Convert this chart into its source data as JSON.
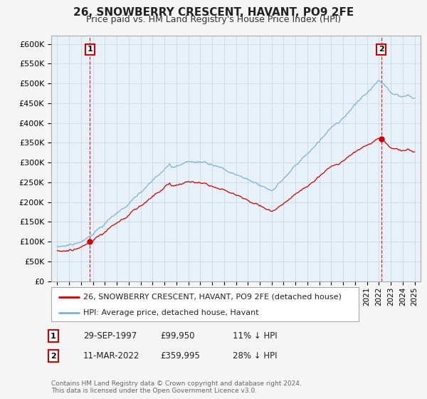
{
  "title": "26, SNOWBERRY CRESCENT, HAVANT, PO9 2FE",
  "subtitle": "Price paid vs. HM Land Registry's House Price Index (HPI)",
  "legend_line1": "26, SNOWBERRY CRESCENT, HAVANT, PO9 2FE (detached house)",
  "legend_line2": "HPI: Average price, detached house, Havant",
  "annotation1_date": "29-SEP-1997",
  "annotation1_price": "£99,950",
  "annotation1_hpi": "11% ↓ HPI",
  "annotation2_date": "11-MAR-2022",
  "annotation2_price": "£359,995",
  "annotation2_hpi": "28% ↓ HPI",
  "footer": "Contains HM Land Registry data © Crown copyright and database right 2024.\nThis data is licensed under the Open Government Licence v3.0.",
  "sale1_year": 1997.75,
  "sale1_price": 99950,
  "sale2_year": 2022.2,
  "sale2_price": 359995,
  "hpi_color": "#7ab4d8",
  "price_color": "#cc0000",
  "ylim_min": 0,
  "ylim_max": 620000,
  "yticks": [
    0,
    50000,
    100000,
    150000,
    200000,
    250000,
    300000,
    350000,
    400000,
    450000,
    500000,
    550000,
    600000
  ],
  "xlim_min": 1994.5,
  "xlim_max": 2025.5,
  "plot_bg_color": "#e8f0f8",
  "background_color": "#f5f5f5",
  "grid_color": "#c8d8e8"
}
